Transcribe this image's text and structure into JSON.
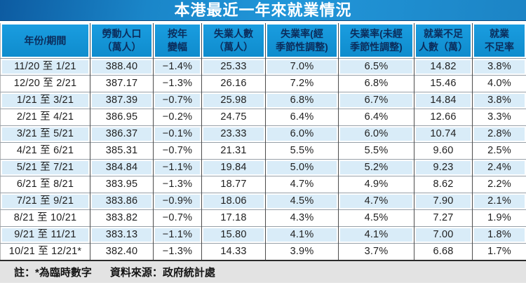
{
  "page": {
    "title": "本港最近一年來就業情況",
    "footnote": "註：*為臨時數字",
    "source": "資料來源：政府統計處"
  },
  "colors": {
    "titlebar_blue_dark": "#0d5ba1",
    "titlebar_blue_bright": "#2196d9",
    "header_blue": "#1193d6",
    "header_text_navy": "#0b2d5c",
    "row_alt_blue": "#d9ecf8",
    "row_white": "#ffffff",
    "row_rule_gray": "#98a0a8",
    "column_rule_dark": "#4d4d4d",
    "footer_gray": "#e3e3e3"
  },
  "chart_data": {
    "type": "table",
    "title": "本港最近一年來就業情況",
    "columns": [
      "年份/期間",
      "勞動人口\n（萬人）",
      "按年\n變幅",
      "失業人數\n（萬人）",
      "失業率(經\n季節性調整)",
      "失業率(未經\n季節性調整)",
      "就業不足\n人數（萬）",
      "就業\n不足率"
    ],
    "rows": [
      [
        "11/20 至 1/21",
        "388.40",
        "−1.4%",
        "25.33",
        "7.0%",
        "6.5%",
        "14.82",
        "3.8%"
      ],
      [
        "12/20 至 2/21",
        "387.17",
        "−1.3%",
        "26.16",
        "7.2%",
        "6.8%",
        "15.46",
        "4.0%"
      ],
      [
        "1/21 至 3/21",
        "387.39",
        "−0.7%",
        "25.98",
        "6.8%",
        "6.7%",
        "14.84",
        "3.8%"
      ],
      [
        "2/21 至 4/21",
        "386.95",
        "−0.2%",
        "24.75",
        "6.4%",
        "6.4%",
        "12.66",
        "3.3%"
      ],
      [
        "3/21 至 5/21",
        "386.37",
        "−0.1%",
        "23.33",
        "6.0%",
        "6.0%",
        "10.74",
        "2.8%"
      ],
      [
        "4/21 至 6/21",
        "385.31",
        "−0.7%",
        "21.31",
        "5.5%",
        "5.5%",
        "9.60",
        "2.5%"
      ],
      [
        "5/21 至 7/21",
        "384.84",
        "−1.1%",
        "19.84",
        "5.0%",
        "5.2%",
        "9.23",
        "2.4%"
      ],
      [
        "6/21 至 8/21",
        "383.95",
        "−1.3%",
        "18.77",
        "4.7%",
        "4.9%",
        "8.62",
        "2.2%"
      ],
      [
        "7/21 至 9/21",
        "383.86",
        "−0.9%",
        "18.06",
        "4.5%",
        "4.7%",
        "7.90",
        "2.1%"
      ],
      [
        "8/21 至 10/21",
        "383.82",
        "−0.7%",
        "17.18",
        "4.3%",
        "4.5%",
        "7.27",
        "1.9%"
      ],
      [
        "9/21 至 11/21",
        "383.13",
        "−1.1%",
        "15.80",
        "4.1%",
        "4.1%",
        "7.00",
        "1.8%"
      ],
      [
        "10/21 至 12/21*",
        "382.40",
        "−1.3%",
        "14.33",
        "3.9%",
        "3.7%",
        "6.68",
        "1.7%"
      ]
    ]
  }
}
